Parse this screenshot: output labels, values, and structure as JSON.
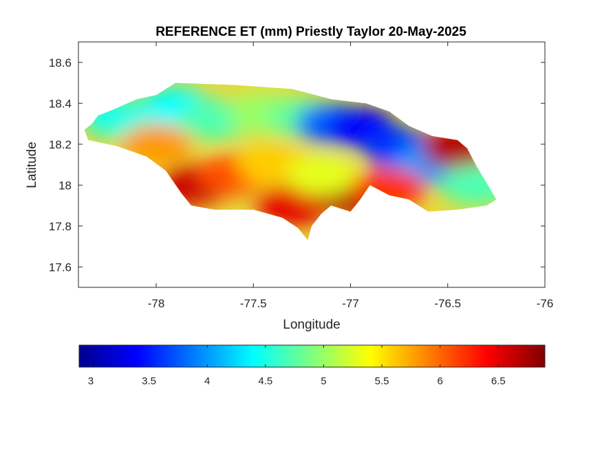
{
  "chart_data": {
    "type": "heatmap",
    "title": "REFERENCE ET (mm) Priestly Taylor 20-May-2025",
    "xlabel": "Longitude",
    "ylabel": "Latitude",
    "xlim": [
      -78.4,
      -76
    ],
    "ylim": [
      17.5,
      18.7
    ],
    "xticks": [
      "-78",
      "-77.5",
      "-77",
      "-76.5",
      "-76"
    ],
    "xtick_values": [
      -78,
      -77.5,
      -77,
      -76.5,
      -76
    ],
    "yticks": [
      "17.6",
      "17.8",
      "18",
      "18.2",
      "18.4",
      "18.6"
    ],
    "ytick_values": [
      17.6,
      17.8,
      18.0,
      18.2,
      18.4,
      18.6
    ],
    "colormap": "jet",
    "color_range": [
      2.9,
      6.9
    ],
    "colorbar_ticks": [
      "3",
      "3.5",
      "4",
      "4.5",
      "5",
      "5.5",
      "6",
      "6.5"
    ],
    "colorbar_tick_values": [
      3,
      3.5,
      4,
      4.5,
      5,
      5.5,
      6,
      6.5
    ],
    "colorbar_location": "southoutside",
    "grid": false,
    "island_outline_lonlat": [
      [
        -78.37,
        18.27
      ],
      [
        -78.33,
        18.3
      ],
      [
        -78.3,
        18.34
      ],
      [
        -78.22,
        18.37
      ],
      [
        -78.1,
        18.42
      ],
      [
        -78.0,
        18.44
      ],
      [
        -77.9,
        18.5
      ],
      [
        -77.6,
        18.49
      ],
      [
        -77.3,
        18.47
      ],
      [
        -77.1,
        18.42
      ],
      [
        -76.92,
        18.4
      ],
      [
        -76.8,
        18.36
      ],
      [
        -76.7,
        18.29
      ],
      [
        -76.58,
        18.24
      ],
      [
        -76.45,
        18.22
      ],
      [
        -76.4,
        18.18
      ],
      [
        -76.35,
        18.09
      ],
      [
        -76.3,
        18.01
      ],
      [
        -76.25,
        17.93
      ],
      [
        -76.3,
        17.9
      ],
      [
        -76.45,
        17.88
      ],
      [
        -76.6,
        17.87
      ],
      [
        -76.7,
        17.93
      ],
      [
        -76.8,
        17.95
      ],
      [
        -76.9,
        18.0
      ],
      [
        -76.95,
        17.93
      ],
      [
        -77.0,
        17.87
      ],
      [
        -77.1,
        17.9
      ],
      [
        -77.15,
        17.86
      ],
      [
        -77.2,
        17.8
      ],
      [
        -77.22,
        17.73
      ],
      [
        -77.27,
        17.79
      ],
      [
        -77.35,
        17.84
      ],
      [
        -77.5,
        17.88
      ],
      [
        -77.7,
        17.88
      ],
      [
        -77.82,
        17.9
      ],
      [
        -77.87,
        17.96
      ],
      [
        -77.95,
        18.07
      ],
      [
        -78.05,
        18.14
      ],
      [
        -78.2,
        18.19
      ],
      [
        -78.35,
        18.22
      ]
    ],
    "value_patches": [
      {
        "lon": -77.9,
        "lat": 18.38,
        "value": 4.4
      },
      {
        "lon": -78.2,
        "lat": 18.33,
        "value": 4.5
      },
      {
        "lon": -77.7,
        "lat": 18.32,
        "value": 4.7
      },
      {
        "lon": -77.45,
        "lat": 18.35,
        "value": 5.0
      },
      {
        "lon": -77.25,
        "lat": 18.33,
        "value": 4.8
      },
      {
        "lon": -77.1,
        "lat": 18.3,
        "value": 3.8
      },
      {
        "lon": -76.95,
        "lat": 18.28,
        "value": 3.4
      },
      {
        "lon": -76.75,
        "lat": 18.18,
        "value": 3.6
      },
      {
        "lon": -76.6,
        "lat": 18.1,
        "value": 4.0
      },
      {
        "lon": -76.45,
        "lat": 18.18,
        "value": 6.7
      },
      {
        "lon": -76.35,
        "lat": 18.0,
        "value": 4.7
      },
      {
        "lon": -77.8,
        "lat": 18.0,
        "value": 6.6
      },
      {
        "lon": -77.6,
        "lat": 18.05,
        "value": 6.1
      },
      {
        "lon": -77.3,
        "lat": 17.9,
        "value": 6.5
      },
      {
        "lon": -77.0,
        "lat": 17.95,
        "value": 6.7
      },
      {
        "lon": -76.8,
        "lat": 17.98,
        "value": 6.2
      },
      {
        "lon": -77.4,
        "lat": 18.1,
        "value": 5.6
      },
      {
        "lon": -78.0,
        "lat": 18.2,
        "value": 5.8
      },
      {
        "lon": -77.15,
        "lat": 18.05,
        "value": 5.3
      }
    ]
  }
}
